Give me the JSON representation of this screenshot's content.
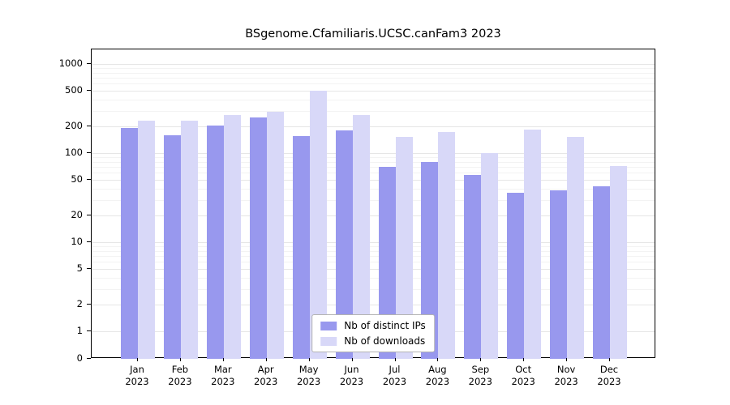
{
  "chart_data": {
    "type": "bar",
    "title": "BSgenome.Cfamiliaris.UCSC.canFam3 2023",
    "xlabel": "",
    "ylabel": "",
    "yscale": "log",
    "ylim": [
      0,
      1000
    ],
    "grid": true,
    "legend_position": "lower center",
    "year_label": "2023",
    "categories": [
      "Jan",
      "Feb",
      "Mar",
      "Apr",
      "May",
      "Jun",
      "Jul",
      "Aug",
      "Sep",
      "Oct",
      "Nov",
      "Dec"
    ],
    "series": [
      {
        "name": "Nb of distinct IPs",
        "color": "#9898ee",
        "values": [
          190,
          160,
          205,
          250,
          155,
          180,
          70,
          80,
          57,
          36,
          38,
          42
        ]
      },
      {
        "name": "Nb of downloads",
        "color": "#d8d8f8",
        "values": [
          230,
          230,
          270,
          290,
          500,
          265,
          152,
          172,
          100,
          182,
          152,
          72
        ]
      }
    ],
    "yticks": [
      0,
      1,
      2,
      5,
      10,
      20,
      50,
      100,
      200,
      500,
      1000
    ],
    "minor_gridlines": [
      3,
      4,
      6,
      7,
      8,
      9,
      30,
      40,
      60,
      70,
      80,
      90,
      300,
      400,
      600,
      700,
      800,
      900
    ]
  },
  "colors": {
    "axis": "#000000",
    "grid_major": "#e6e6e6",
    "grid_minor": "#f3f3f3",
    "background": "#ffffff",
    "legend_border": "#b3b3b3"
  }
}
